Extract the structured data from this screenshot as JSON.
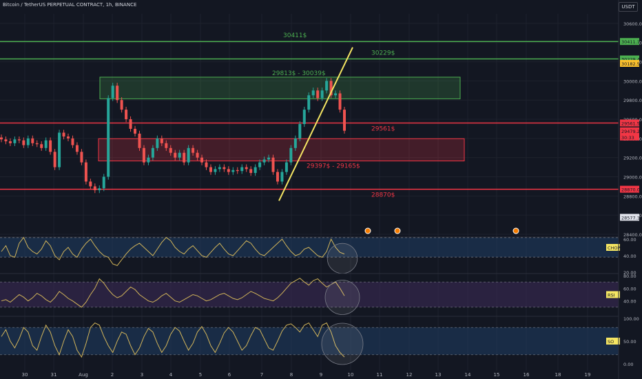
{
  "header": {
    "title": "Bitcoin / TetherUS PERPETUAL CONTRACT, 1h, BINANCE",
    "currency": "USDT"
  },
  "colors": {
    "bg": "#131722",
    "green": "#4caf50",
    "red": "#f23645",
    "yellow": "#f5e663",
    "up": "#26a69a",
    "down": "#ef5350",
    "osc": "#d4b65a"
  },
  "chart_data": [
    {
      "type": "candlestick",
      "title": "Bitcoin / TetherUS PERPETUAL CONTRACT, 1h, BINANCE",
      "ylim": [
        28400,
        30700
      ],
      "yticks": [
        28400,
        28600,
        28800,
        29000,
        29200,
        29400,
        29600,
        29800,
        30000,
        30200,
        30400,
        30600
      ],
      "x_tick_labels": [
        "30",
        "31",
        "Aug",
        "2",
        "3",
        "4",
        "5",
        "6",
        "7",
        "8",
        "9",
        "10",
        "11",
        "12",
        "13",
        "14",
        "15",
        "16",
        "18",
        "19"
      ],
      "close_series": [
        29390,
        29370,
        29350,
        29390,
        29380,
        29330,
        29400,
        29350,
        29340,
        29300,
        29380,
        29260,
        29100,
        29460,
        29420,
        29400,
        29330,
        29260,
        29150,
        28950,
        28900,
        28860,
        28880,
        29000,
        29820,
        29950,
        29800,
        29700,
        29600,
        29500,
        29450,
        29300,
        29150,
        29200,
        29300,
        29400,
        29350,
        29300,
        29250,
        29200,
        29250,
        29150,
        29300,
        29250,
        29200,
        29150,
        29100,
        29050,
        29080,
        29100,
        29080,
        29050,
        29070,
        29060,
        29100,
        29080,
        29040,
        29100,
        29150,
        29180,
        29200,
        29050,
        28950,
        29050,
        29150,
        29300,
        29400,
        29550,
        29700,
        29850,
        29900,
        29820,
        29900,
        30000,
        29850,
        29870,
        29700,
        29480
      ],
      "levels": [
        {
          "value": 30411,
          "label": "30411$",
          "color": "green",
          "tag": "30411.1"
        },
        {
          "value": 30229,
          "label": "30229$",
          "color": "green",
          "tag": "30229.4"
        },
        {
          "value": 29561,
          "label": "29561$",
          "color": "red",
          "tag": "29561.5"
        },
        {
          "value": 28870,
          "label": "28870$",
          "color": "red",
          "tag": "28870.0"
        }
      ],
      "zones": [
        {
          "low": 29813,
          "high": 30039,
          "label": "29813$ - 30039$",
          "color": "green",
          "x_start": "2",
          "x_end": "13"
        },
        {
          "low": 29165,
          "high": 29397,
          "label": "29397$ - 29165$",
          "color": "red",
          "x_start": "Aug",
          "x_end": "13"
        }
      ],
      "price_tags": [
        "30182.5",
        "29479.2",
        "30:33",
        "28577.1"
      ],
      "trendline": {
        "from": {
          "x": "8",
          "y": 28750
        },
        "to": {
          "x": "9",
          "y": 30350
        }
      }
    },
    {
      "type": "line",
      "name": "CHOP",
      "ylim": [
        20,
        60
      ],
      "yticks": [
        20,
        40,
        60
      ],
      "band": [
        38.2,
        61.8
      ],
      "values": [
        45,
        52,
        40,
        38,
        55,
        62,
        50,
        45,
        42,
        48,
        58,
        52,
        40,
        35,
        45,
        50,
        42,
        38,
        48,
        55,
        60,
        52,
        45,
        40,
        38,
        30,
        28,
        35,
        42,
        48,
        52,
        55,
        50,
        45,
        40,
        48,
        56,
        62,
        58,
        50,
        45,
        42,
        48,
        52,
        46,
        40,
        38,
        44,
        50,
        55,
        48,
        42,
        40,
        46,
        52,
        58,
        55,
        48,
        42,
        40,
        45,
        50,
        55,
        60,
        52,
        45,
        40,
        42,
        48,
        50,
        45,
        40,
        38,
        45,
        60,
        50,
        44,
        42
      ]
    },
    {
      "type": "line",
      "name": "RSI",
      "ylim": [
        20,
        80
      ],
      "yticks": [
        40,
        60,
        80
      ],
      "band": [
        30,
        70
      ],
      "values": [
        40,
        42,
        38,
        44,
        50,
        46,
        40,
        45,
        52,
        48,
        42,
        38,
        45,
        55,
        50,
        44,
        40,
        35,
        30,
        38,
        50,
        60,
        75,
        68,
        58,
        50,
        45,
        48,
        55,
        62,
        58,
        50,
        45,
        40,
        38,
        42,
        48,
        52,
        46,
        40,
        38,
        42,
        46,
        50,
        48,
        44,
        40,
        42,
        46,
        50,
        52,
        48,
        44,
        42,
        45,
        50,
        55,
        52,
        48,
        44,
        42,
        40,
        45,
        52,
        60,
        68,
        72,
        76,
        70,
        65,
        72,
        75,
        68,
        62,
        66,
        70,
        60,
        48
      ]
    },
    {
      "type": "line",
      "name": "SO",
      "ylim": [
        0,
        100
      ],
      "yticks": [
        0,
        50,
        100
      ],
      "band": [
        20,
        80
      ],
      "values": [
        60,
        75,
        50,
        35,
        55,
        80,
        70,
        40,
        30,
        60,
        85,
        70,
        40,
        20,
        50,
        75,
        60,
        30,
        15,
        45,
        80,
        90,
        85,
        60,
        40,
        25,
        50,
        70,
        65,
        40,
        20,
        35,
        60,
        78,
        70,
        45,
        25,
        40,
        65,
        80,
        72,
        50,
        30,
        45,
        70,
        82,
        65,
        40,
        25,
        45,
        68,
        80,
        70,
        50,
        30,
        40,
        62,
        80,
        75,
        55,
        35,
        30,
        50,
        72,
        85,
        88,
        80,
        70,
        85,
        90,
        75,
        60,
        85,
        90,
        70,
        40,
        25,
        15
      ]
    }
  ]
}
